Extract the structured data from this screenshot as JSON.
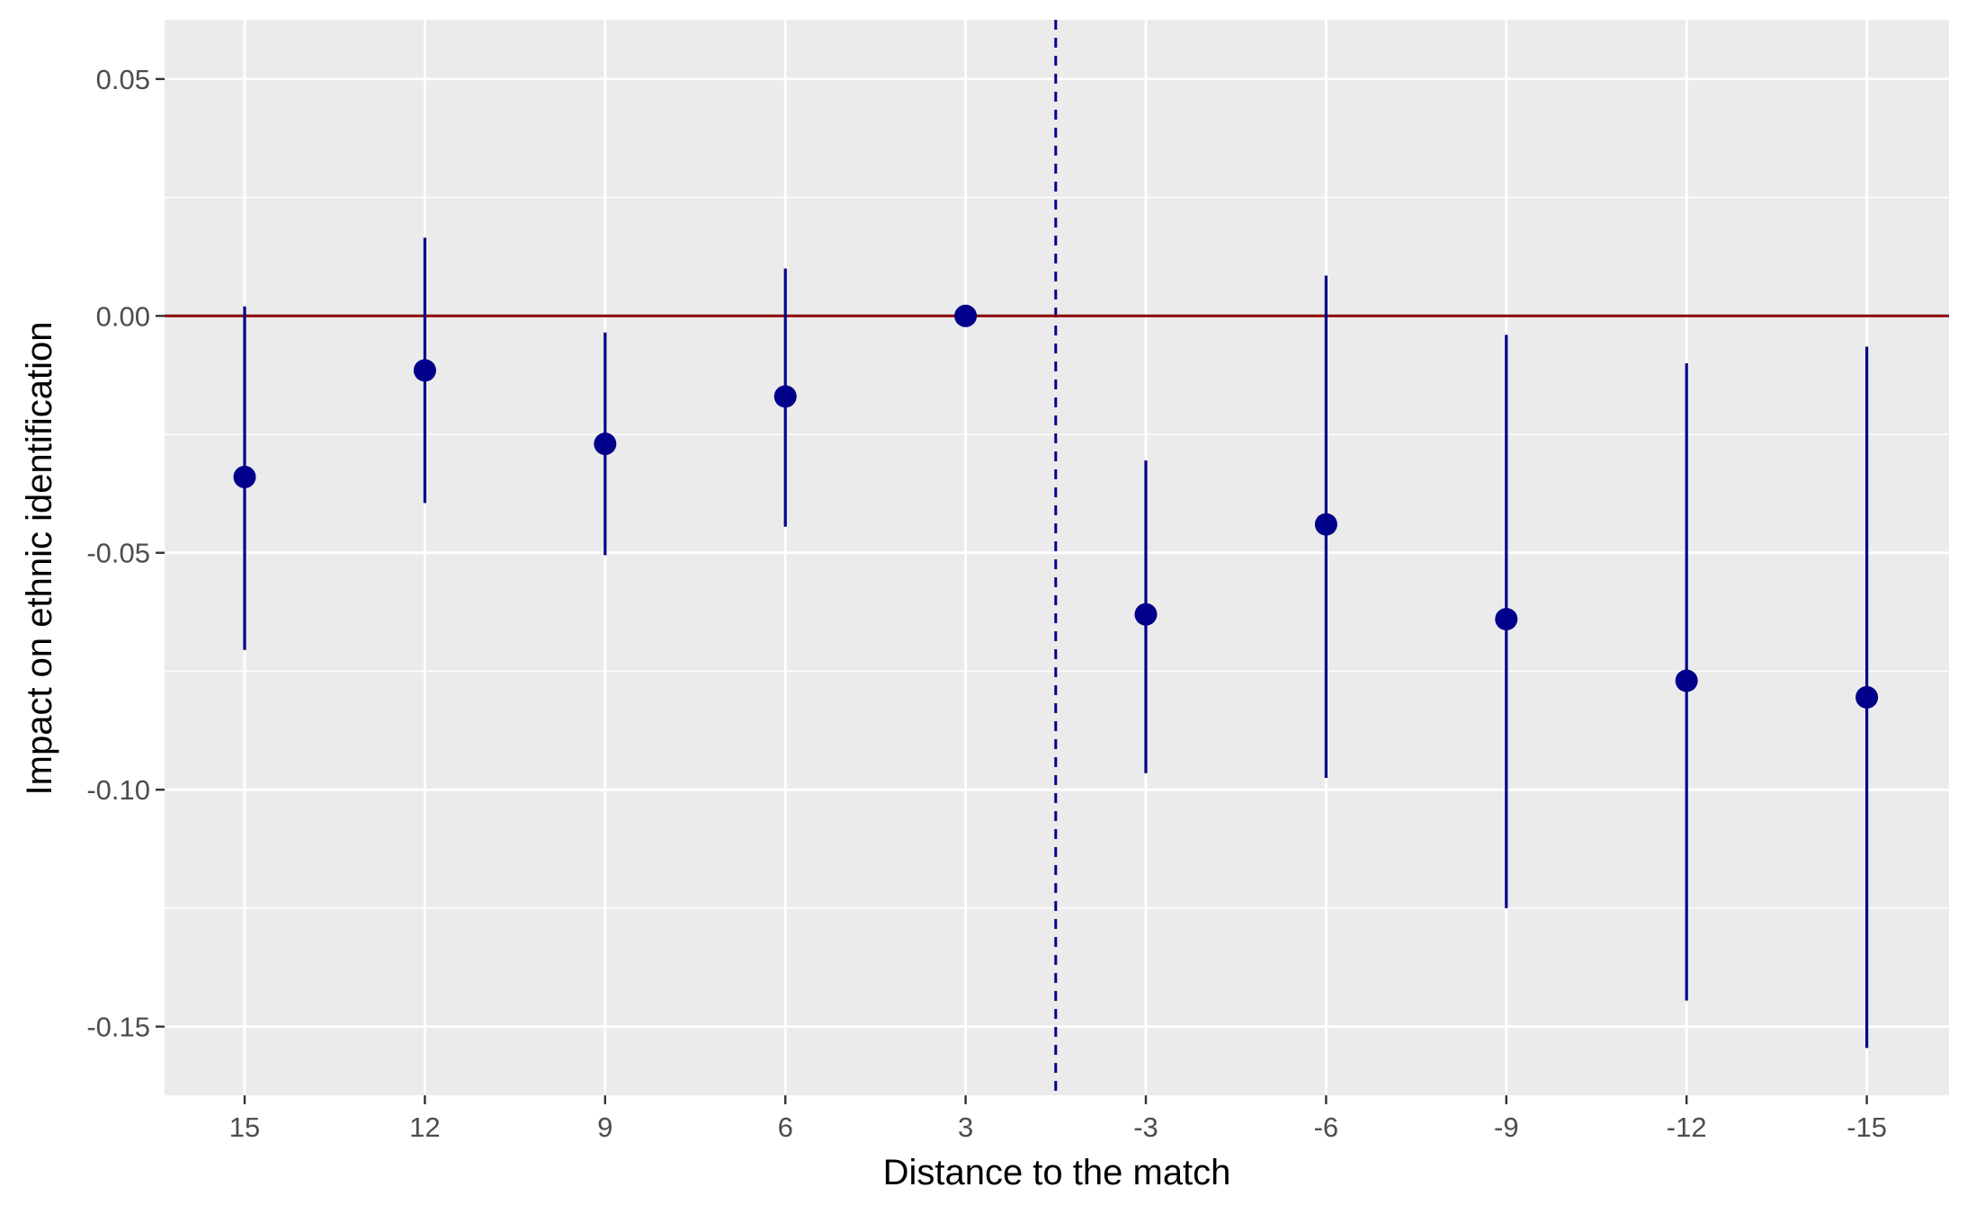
{
  "chart_data": {
    "type": "scatter",
    "subtype": "coefficient-plot-with-error-bars",
    "title": "",
    "xlabel": "Distance to the match",
    "ylabel": "Impact on ethnic identification",
    "categories": [
      "15",
      "12",
      "9",
      "6",
      "3",
      "-3",
      "-6",
      "-9",
      "-12",
      "-15"
    ],
    "estimates": [
      -0.034,
      -0.0115,
      -0.027,
      -0.017,
      0.0,
      -0.063,
      -0.044,
      -0.064,
      -0.077,
      -0.0805
    ],
    "ci_lower": [
      -0.0705,
      -0.0395,
      -0.0505,
      -0.0445,
      0.0,
      -0.0965,
      -0.0975,
      -0.125,
      -0.1445,
      -0.1545
    ],
    "ci_upper": [
      0.002,
      0.0165,
      -0.0035,
      0.01,
      0.0,
      -0.0305,
      0.0085,
      -0.004,
      -0.01,
      -0.0065
    ],
    "ylim": [
      -0.1645,
      0.0625
    ],
    "yticks": [
      0.05,
      0.0,
      -0.05,
      -0.1,
      -0.15
    ],
    "ytick_labels": [
      "0.05",
      "0.00",
      "-0.05",
      "-0.10",
      "-0.15"
    ],
    "reference_hline": 0.0,
    "reference_vline_between": [
      "3",
      "-3"
    ],
    "grid": true,
    "legend": "none",
    "colors": {
      "points": "#00008B",
      "hline": "#8B0000",
      "vline": "#00008B",
      "panel": "#EBEBEB",
      "grid": "#FFFFFF"
    }
  }
}
